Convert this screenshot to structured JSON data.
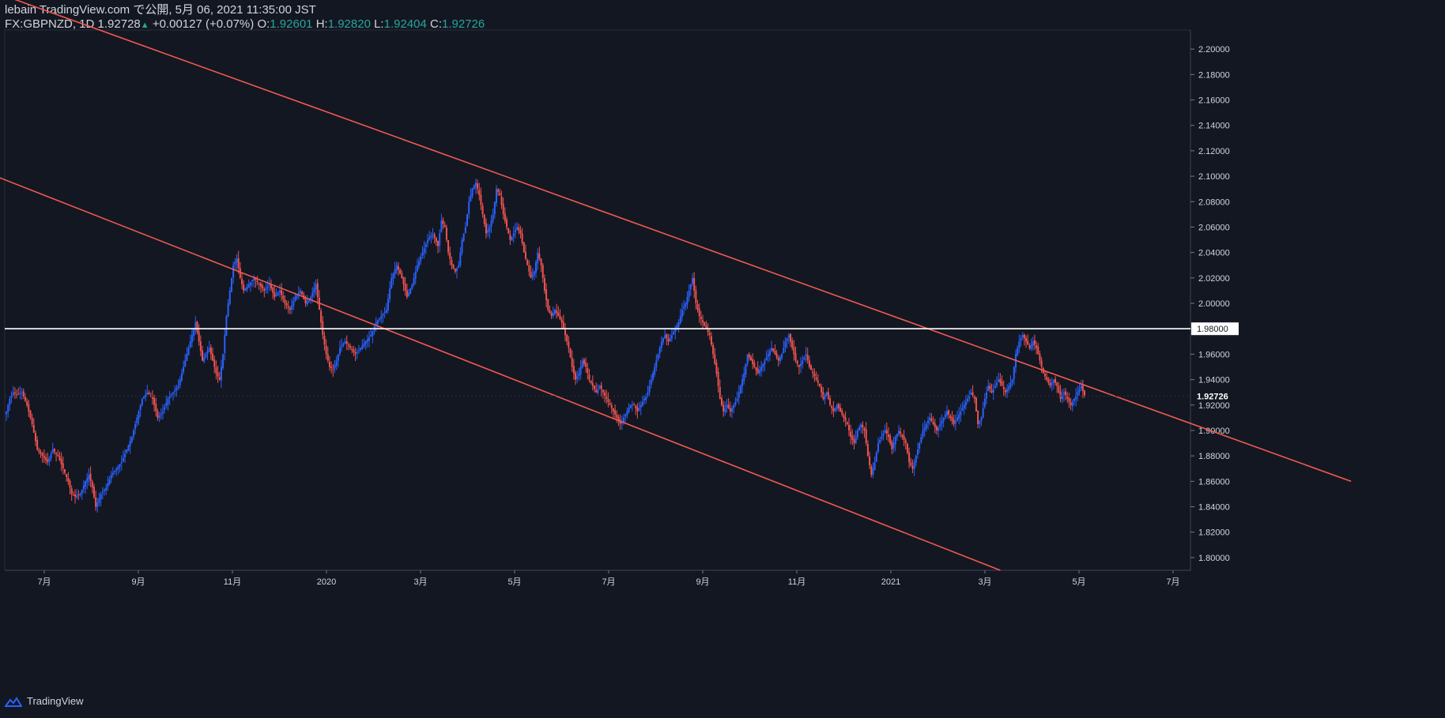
{
  "header": {
    "publisher_line": "lebain TradingView.com で公開, 5月 06, 2021 11:35:00 JST",
    "symbol": "FX:GBPNZD, 1D",
    "last": "1.92728",
    "change": "+0.00127 (+0.07%)",
    "o_label": "O:",
    "o_value": "1.92601",
    "h_label": "H:",
    "h_value": "1.92820",
    "l_label": "L:",
    "l_value": "1.92404",
    "c_label": "C:",
    "c_value": "1.92726"
  },
  "footer": {
    "brand": "TradingView",
    "logo_icon": "tradingview-logo-icon"
  },
  "colors": {
    "background": "#131722",
    "up": "#2962ff",
    "down": "#ef5350",
    "trendline": "#f05a50",
    "level": "#ffffff",
    "text": "#d1d4dc",
    "accent": "#26a69a"
  },
  "chart_data": {
    "type": "candlestick",
    "symbol": "FX:GBPNZD",
    "interval": "1D",
    "ylim": [
      1.79,
      2.215
    ],
    "y_ticks": [
      "2.20000",
      "2.18000",
      "2.16000",
      "2.14000",
      "2.12000",
      "2.10000",
      "2.08000",
      "2.06000",
      "2.04000",
      "2.02000",
      "2.00000",
      "1.98000",
      "1.96000",
      "1.94000",
      "1.92000",
      "1.90000",
      "1.88000",
      "1.86000",
      "1.84000",
      "1.82000",
      "1.80000"
    ],
    "x_ticks": [
      "7月",
      "9月",
      "11月",
      "2020",
      "3月",
      "5月",
      "7月",
      "9月",
      "11月",
      "2021",
      "3月",
      "5月",
      "7月"
    ],
    "last_price_label": "1.92726",
    "level_label": "1.98000",
    "horizontal_level": 1.98,
    "closes": [
      [
        0,
        1.915
      ],
      [
        2,
        1.925
      ],
      [
        4,
        1.93
      ],
      [
        6,
        1.928
      ],
      [
        9,
        1.93
      ],
      [
        12,
        1.92
      ],
      [
        15,
        1.905
      ],
      [
        18,
        1.885
      ],
      [
        21,
        1.88
      ],
      [
        24,
        1.875
      ],
      [
        27,
        1.885
      ],
      [
        30,
        1.88
      ],
      [
        33,
        1.87
      ],
      [
        36,
        1.86
      ],
      [
        38,
        1.85
      ],
      [
        40,
        1.848
      ],
      [
        43,
        1.85
      ],
      [
        46,
        1.86
      ],
      [
        48,
        1.865
      ],
      [
        50,
        1.855
      ],
      [
        52,
        1.84
      ],
      [
        55,
        1.85
      ],
      [
        58,
        1.855
      ],
      [
        61,
        1.865
      ],
      [
        64,
        1.87
      ],
      [
        67,
        1.875
      ],
      [
        70,
        1.885
      ],
      [
        73,
        1.895
      ],
      [
        76,
        1.91
      ],
      [
        79,
        1.925
      ],
      [
        82,
        1.93
      ],
      [
        85,
        1.925
      ],
      [
        88,
        1.91
      ],
      [
        91,
        1.915
      ],
      [
        94,
        1.925
      ],
      [
        97,
        1.93
      ],
      [
        100,
        1.935
      ],
      [
        103,
        1.95
      ],
      [
        106,
        1.965
      ],
      [
        108,
        1.975
      ],
      [
        110,
        1.985
      ],
      [
        112,
        1.97
      ],
      [
        114,
        1.955
      ],
      [
        116,
        1.96
      ],
      [
        118,
        1.965
      ],
      [
        120,
        1.955
      ],
      [
        122,
        1.945
      ],
      [
        124,
        1.94
      ],
      [
        126,
        1.96
      ],
      [
        128,
        1.99
      ],
      [
        130,
        2.01
      ],
      [
        132,
        2.03
      ],
      [
        134,
        2.035
      ],
      [
        136,
        2.02
      ],
      [
        138,
        2.01
      ],
      [
        141,
        2.015
      ],
      [
        144,
        2.02
      ],
      [
        147,
        2.015
      ],
      [
        150,
        2.01
      ],
      [
        153,
        2.015
      ],
      [
        156,
        2.005
      ],
      [
        159,
        2.01
      ],
      [
        162,
        2.0
      ],
      [
        165,
        1.995
      ],
      [
        168,
        2.005
      ],
      [
        171,
        2.01
      ],
      [
        174,
        2.0
      ],
      [
        177,
        2.005
      ],
      [
        180,
        2.015
      ],
      [
        182,
        1.995
      ],
      [
        184,
        1.975
      ],
      [
        186,
        1.96
      ],
      [
        188,
        1.95
      ],
      [
        190,
        1.948
      ],
      [
        192,
        1.955
      ],
      [
        194,
        1.965
      ],
      [
        197,
        1.97
      ],
      [
        200,
        1.965
      ],
      [
        203,
        1.96
      ],
      [
        206,
        1.965
      ],
      [
        209,
        1.97
      ],
      [
        212,
        1.975
      ],
      [
        215,
        1.985
      ],
      [
        218,
        1.99
      ],
      [
        221,
        1.995
      ],
      [
        224,
        2.02
      ],
      [
        227,
        2.03
      ],
      [
        230,
        2.02
      ],
      [
        233,
        2.005
      ],
      [
        236,
        2.015
      ],
      [
        239,
        2.03
      ],
      [
        242,
        2.04
      ],
      [
        245,
        2.05
      ],
      [
        248,
        2.055
      ],
      [
        251,
        2.045
      ],
      [
        253,
        2.065
      ],
      [
        255,
        2.06
      ],
      [
        257,
        2.04
      ],
      [
        259,
        2.03
      ],
      [
        261,
        2.025
      ],
      [
        263,
        2.03
      ],
      [
        265,
        2.05
      ],
      [
        267,
        2.06
      ],
      [
        269,
        2.08
      ],
      [
        271,
        2.09
      ],
      [
        273,
        2.095
      ],
      [
        275,
        2.085
      ],
      [
        277,
        2.07
      ],
      [
        279,
        2.055
      ],
      [
        281,
        2.06
      ],
      [
        283,
        2.07
      ],
      [
        285,
        2.09
      ],
      [
        287,
        2.085
      ],
      [
        289,
        2.07
      ],
      [
        291,
        2.06
      ],
      [
        293,
        2.05
      ],
      [
        295,
        2.055
      ],
      [
        297,
        2.06
      ],
      [
        299,
        2.055
      ],
      [
        301,
        2.04
      ],
      [
        303,
        2.03
      ],
      [
        305,
        2.02
      ],
      [
        307,
        2.025
      ],
      [
        309,
        2.04
      ],
      [
        311,
        2.03
      ],
      [
        313,
        2.01
      ],
      [
        315,
        1.995
      ],
      [
        317,
        1.99
      ],
      [
        319,
        1.995
      ],
      [
        321,
        1.99
      ],
      [
        323,
        1.985
      ],
      [
        325,
        1.975
      ],
      [
        327,
        1.965
      ],
      [
        329,
        1.95
      ],
      [
        331,
        1.94
      ],
      [
        333,
        1.945
      ],
      [
        335,
        1.955
      ],
      [
        337,
        1.95
      ],
      [
        339,
        1.94
      ],
      [
        341,
        1.935
      ],
      [
        343,
        1.93
      ],
      [
        345,
        1.935
      ],
      [
        347,
        1.93
      ],
      [
        349,
        1.925
      ],
      [
        351,
        1.92
      ],
      [
        353,
        1.915
      ],
      [
        355,
        1.91
      ],
      [
        357,
        1.905
      ],
      [
        359,
        1.91
      ],
      [
        361,
        1.915
      ],
      [
        363,
        1.92
      ],
      [
        365,
        1.92
      ],
      [
        367,
        1.915
      ],
      [
        369,
        1.92
      ],
      [
        371,
        1.925
      ],
      [
        373,
        1.93
      ],
      [
        375,
        1.94
      ],
      [
        377,
        1.95
      ],
      [
        379,
        1.96
      ],
      [
        381,
        1.97
      ],
      [
        383,
        1.975
      ],
      [
        385,
        1.97
      ],
      [
        387,
        1.975
      ],
      [
        389,
        1.98
      ],
      [
        391,
        1.985
      ],
      [
        393,
        1.995
      ],
      [
        395,
        2.0
      ],
      [
        397,
        2.01
      ],
      [
        399,
        2.02
      ],
      [
        401,
        2.0
      ],
      [
        403,
        1.99
      ],
      [
        405,
        1.985
      ],
      [
        407,
        1.98
      ],
      [
        409,
        1.975
      ],
      [
        411,
        1.96
      ],
      [
        413,
        1.945
      ],
      [
        415,
        1.925
      ],
      [
        417,
        1.915
      ],
      [
        419,
        1.92
      ],
      [
        421,
        1.915
      ],
      [
        423,
        1.92
      ],
      [
        425,
        1.925
      ],
      [
        427,
        1.935
      ],
      [
        429,
        1.945
      ],
      [
        431,
        1.96
      ],
      [
        433,
        1.955
      ],
      [
        435,
        1.95
      ],
      [
        437,
        1.945
      ],
      [
        439,
        1.95
      ],
      [
        441,
        1.955
      ],
      [
        443,
        1.96
      ],
      [
        445,
        1.965
      ],
      [
        447,
        1.96
      ],
      [
        449,
        1.955
      ],
      [
        451,
        1.96
      ],
      [
        453,
        1.97
      ],
      [
        455,
        1.975
      ],
      [
        457,
        1.965
      ],
      [
        459,
        1.955
      ],
      [
        461,
        1.95
      ],
      [
        463,
        1.955
      ],
      [
        465,
        1.96
      ],
      [
        467,
        1.95
      ],
      [
        469,
        1.945
      ],
      [
        471,
        1.94
      ],
      [
        473,
        1.935
      ],
      [
        475,
        1.925
      ],
      [
        477,
        1.93
      ],
      [
        479,
        1.92
      ],
      [
        481,
        1.915
      ],
      [
        483,
        1.92
      ],
      [
        485,
        1.915
      ],
      [
        487,
        1.91
      ],
      [
        489,
        1.905
      ],
      [
        491,
        1.895
      ],
      [
        493,
        1.89
      ],
      [
        495,
        1.9
      ],
      [
        497,
        1.905
      ],
      [
        499,
        1.9
      ],
      [
        501,
        1.88
      ],
      [
        503,
        1.865
      ],
      [
        505,
        1.875
      ],
      [
        507,
        1.89
      ],
      [
        509,
        1.895
      ],
      [
        511,
        1.9
      ],
      [
        513,
        1.895
      ],
      [
        515,
        1.885
      ],
      [
        517,
        1.895
      ],
      [
        519,
        1.9
      ],
      [
        521,
        1.895
      ],
      [
        523,
        1.89
      ],
      [
        525,
        1.875
      ],
      [
        527,
        1.87
      ],
      [
        529,
        1.88
      ],
      [
        531,
        1.89
      ],
      [
        533,
        1.9
      ],
      [
        535,
        1.905
      ],
      [
        537,
        1.91
      ],
      [
        539,
        1.905
      ],
      [
        541,
        1.9
      ],
      [
        543,
        1.905
      ],
      [
        545,
        1.91
      ],
      [
        547,
        1.915
      ],
      [
        549,
        1.91
      ],
      [
        551,
        1.905
      ],
      [
        553,
        1.91
      ],
      [
        555,
        1.915
      ],
      [
        557,
        1.92
      ],
      [
        559,
        1.925
      ],
      [
        561,
        1.93
      ],
      [
        563,
        1.925
      ],
      [
        565,
        1.905
      ],
      [
        567,
        1.91
      ],
      [
        569,
        1.925
      ],
      [
        571,
        1.935
      ],
      [
        573,
        1.93
      ],
      [
        575,
        1.935
      ],
      [
        577,
        1.94
      ],
      [
        579,
        1.935
      ],
      [
        581,
        1.93
      ],
      [
        583,
        1.935
      ],
      [
        585,
        1.94
      ],
      [
        587,
        1.96
      ],
      [
        589,
        1.97
      ],
      [
        591,
        1.975
      ],
      [
        593,
        1.97
      ],
      [
        595,
        1.965
      ],
      [
        597,
        1.97
      ],
      [
        599,
        1.965
      ],
      [
        601,
        1.955
      ],
      [
        603,
        1.945
      ],
      [
        605,
        1.94
      ],
      [
        607,
        1.935
      ],
      [
        609,
        1.94
      ],
      [
        611,
        1.935
      ],
      [
        613,
        1.925
      ],
      [
        615,
        1.93
      ],
      [
        617,
        1.925
      ],
      [
        619,
        1.92
      ],
      [
        621,
        1.925
      ],
      [
        623,
        1.93
      ],
      [
        625,
        1.935
      ],
      [
        627,
        1.927
      ]
    ],
    "trendlines": [
      {
        "start": [
          -38,
          2.26
        ],
        "end": [
          782,
          1.86
        ]
      },
      {
        "start": [
          -25,
          2.11
        ],
        "end": [
          578,
          1.79
        ]
      }
    ]
  }
}
